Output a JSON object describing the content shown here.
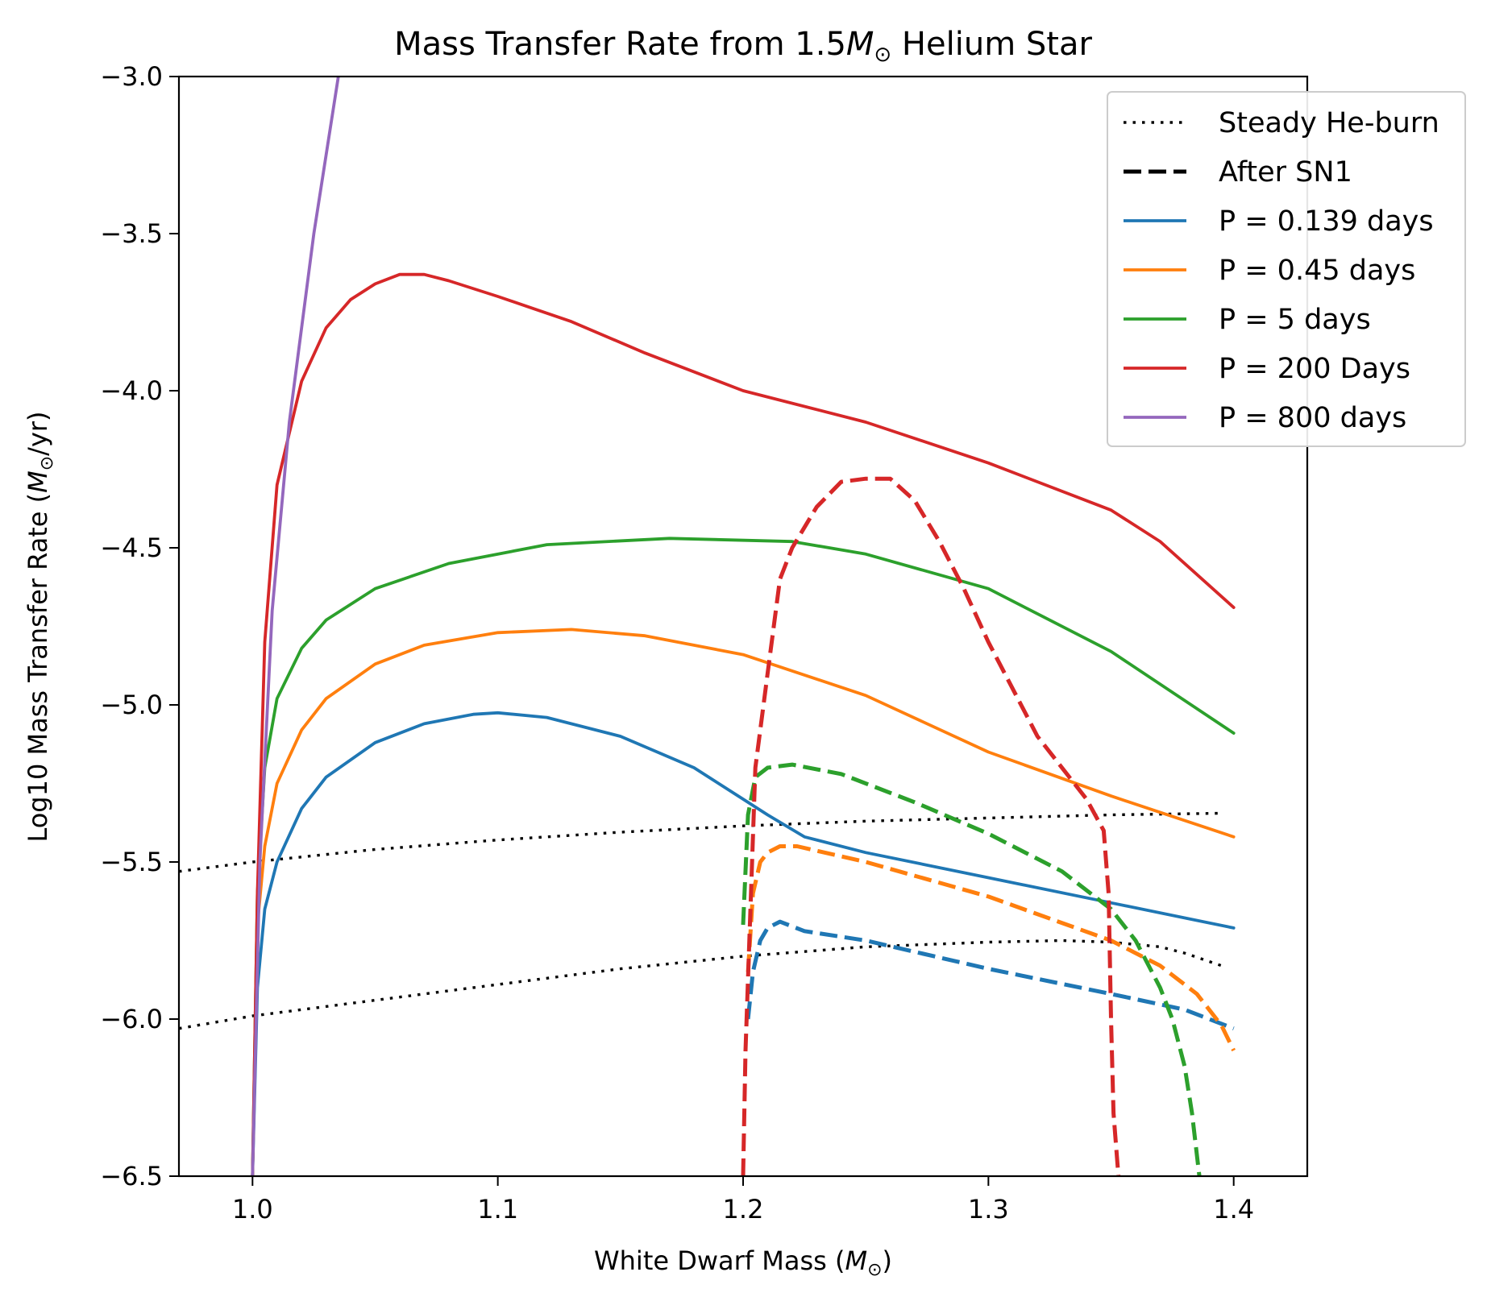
{
  "chart_data": {
    "type": "line",
    "title": "Mass Transfer Rate from 1.5M☉ Helium Star",
    "title_parts": {
      "prefix": "Mass Transfer Rate from 1.5",
      "symbol": "M",
      "sub": "⊙",
      "suffix": " Helium Star"
    },
    "xlabel": "White Dwarf Mass (M☉)",
    "xlabel_parts": {
      "prefix": "White Dwarf Mass (",
      "symbol": "M",
      "sub": "⊙",
      "suffix": ")"
    },
    "ylabel": "Log10 Mass Transfer Rate (M☉/yr)",
    "ylabel_parts": {
      "prefix": "Log10 Mass Transfer Rate (",
      "symbol": "M",
      "sub": "⊙",
      "suffix": "/yr)"
    },
    "xlim": [
      0.97,
      1.43
    ],
    "ylim": [
      -6.5,
      -3.0
    ],
    "xticks": [
      1.0,
      1.1,
      1.2,
      1.3,
      1.4
    ],
    "xtick_labels": [
      "1.0",
      "1.1",
      "1.2",
      "1.3",
      "1.4"
    ],
    "yticks": [
      -3.0,
      -3.5,
      -4.0,
      -4.5,
      -5.0,
      -5.5,
      -6.0,
      -6.5
    ],
    "ytick_labels": [
      "−3.0",
      "−3.5",
      "−4.0",
      "−4.5",
      "−5.0",
      "−5.5",
      "−6.0",
      "−6.5"
    ],
    "grid": false,
    "legend_position": "top-right",
    "legend": [
      {
        "label": "Steady He-burn",
        "color": "#000000",
        "style": "dotted"
      },
      {
        "label": "After SN1",
        "color": "#000000",
        "style": "dashed"
      },
      {
        "label": "P = 0.139 days",
        "color": "#1f77b4",
        "style": "solid"
      },
      {
        "label": "P = 0.45 days",
        "color": "#ff7f0e",
        "style": "solid"
      },
      {
        "label": "P = 5 days",
        "color": "#2ca02c",
        "style": "solid"
      },
      {
        "label": "P = 200 Days",
        "color": "#d62728",
        "style": "solid"
      },
      {
        "label": "P = 800 days",
        "color": "#9467bd",
        "style": "solid"
      }
    ],
    "series": [
      {
        "color": "#000000",
        "style": "dotted",
        "x": [
          0.97,
          1.0,
          1.05,
          1.1,
          1.15,
          1.2,
          1.25,
          1.3,
          1.35,
          1.395
        ],
        "y": [
          -5.53,
          -5.5,
          -5.46,
          -5.43,
          -5.405,
          -5.385,
          -5.37,
          -5.36,
          -5.35,
          -5.345
        ]
      },
      {
        "color": "#000000",
        "style": "dotted",
        "x": [
          0.97,
          1.0,
          1.05,
          1.1,
          1.15,
          1.2,
          1.25,
          1.3,
          1.33,
          1.35,
          1.37,
          1.38,
          1.395
        ],
        "y": [
          -6.03,
          -5.99,
          -5.94,
          -5.89,
          -5.84,
          -5.8,
          -5.77,
          -5.755,
          -5.75,
          -5.755,
          -5.77,
          -5.79,
          -5.83
        ]
      },
      {
        "color": "#1f77b4",
        "style": "solid",
        "x": [
          1.0,
          1.002,
          1.005,
          1.01,
          1.02,
          1.03,
          1.05,
          1.07,
          1.09,
          1.1,
          1.12,
          1.15,
          1.18,
          1.2,
          1.21,
          1.225,
          1.25,
          1.3,
          1.35,
          1.4
        ],
        "y": [
          -6.5,
          -5.9,
          -5.65,
          -5.5,
          -5.33,
          -5.23,
          -5.12,
          -5.06,
          -5.03,
          -5.025,
          -5.04,
          -5.1,
          -5.2,
          -5.3,
          -5.35,
          -5.42,
          -5.47,
          -5.55,
          -5.63,
          -5.71
        ]
      },
      {
        "color": "#ff7f0e",
        "style": "solid",
        "x": [
          1.0,
          1.002,
          1.005,
          1.01,
          1.02,
          1.03,
          1.05,
          1.07,
          1.1,
          1.13,
          1.16,
          1.2,
          1.25,
          1.3,
          1.35,
          1.4
        ],
        "y": [
          -6.5,
          -5.7,
          -5.45,
          -5.25,
          -5.08,
          -4.98,
          -4.87,
          -4.81,
          -4.77,
          -4.76,
          -4.78,
          -4.84,
          -4.97,
          -5.15,
          -5.29,
          -5.42
        ]
      },
      {
        "color": "#2ca02c",
        "style": "solid",
        "x": [
          1.0,
          1.002,
          1.005,
          1.01,
          1.02,
          1.03,
          1.05,
          1.08,
          1.12,
          1.17,
          1.22,
          1.25,
          1.3,
          1.35,
          1.4
        ],
        "y": [
          -6.5,
          -5.6,
          -5.2,
          -4.98,
          -4.82,
          -4.73,
          -4.63,
          -4.55,
          -4.49,
          -4.47,
          -4.48,
          -4.52,
          -4.63,
          -4.83,
          -5.09
        ]
      },
      {
        "color": "#d62728",
        "style": "solid",
        "x": [
          1.0,
          1.002,
          1.005,
          1.01,
          1.02,
          1.03,
          1.04,
          1.05,
          1.06,
          1.07,
          1.08,
          1.1,
          1.13,
          1.16,
          1.2,
          1.25,
          1.3,
          1.35,
          1.37,
          1.4
        ],
        "y": [
          -6.5,
          -5.6,
          -4.8,
          -4.3,
          -3.97,
          -3.8,
          -3.71,
          -3.66,
          -3.63,
          -3.63,
          -3.65,
          -3.7,
          -3.78,
          -3.88,
          -4.0,
          -4.1,
          -4.23,
          -4.38,
          -4.48,
          -4.69
        ]
      },
      {
        "color": "#9467bd",
        "style": "solid",
        "x": [
          1.0,
          1.003,
          1.008,
          1.015,
          1.025,
          1.035
        ],
        "y": [
          -6.5,
          -5.5,
          -4.7,
          -4.1,
          -3.5,
          -3.0
        ]
      },
      {
        "color": "#1f77b4",
        "style": "dashed",
        "x": [
          1.202,
          1.204,
          1.207,
          1.21,
          1.215,
          1.225,
          1.25,
          1.3,
          1.35,
          1.38,
          1.4
        ],
        "y": [
          -6.0,
          -5.85,
          -5.75,
          -5.71,
          -5.69,
          -5.72,
          -5.75,
          -5.84,
          -5.92,
          -5.97,
          -6.03
        ]
      },
      {
        "color": "#ff7f0e",
        "style": "dashed",
        "x": [
          1.202,
          1.204,
          1.207,
          1.21,
          1.215,
          1.222,
          1.25,
          1.3,
          1.35,
          1.37,
          1.385,
          1.395,
          1.4
        ],
        "y": [
          -5.85,
          -5.6,
          -5.5,
          -5.47,
          -5.45,
          -5.45,
          -5.5,
          -5.61,
          -5.75,
          -5.83,
          -5.92,
          -6.02,
          -6.1
        ]
      },
      {
        "color": "#2ca02c",
        "style": "dashed",
        "x": [
          1.2,
          1.202,
          1.205,
          1.21,
          1.22,
          1.24,
          1.27,
          1.3,
          1.33,
          1.35,
          1.36,
          1.37,
          1.375,
          1.38,
          1.383,
          1.386
        ],
        "y": [
          -5.7,
          -5.35,
          -5.23,
          -5.2,
          -5.19,
          -5.22,
          -5.31,
          -5.41,
          -5.53,
          -5.65,
          -5.75,
          -5.9,
          -6.0,
          -6.15,
          -6.3,
          -6.5
        ]
      },
      {
        "color": "#d62728",
        "style": "dashed",
        "x": [
          1.2,
          1.201,
          1.205,
          1.21,
          1.215,
          1.22,
          1.23,
          1.24,
          1.25,
          1.26,
          1.27,
          1.28,
          1.29,
          1.3,
          1.32,
          1.34,
          1.347,
          1.349,
          1.35,
          1.351,
          1.353
        ],
        "y": [
          -6.5,
          -6.1,
          -5.2,
          -4.9,
          -4.6,
          -4.5,
          -4.37,
          -4.29,
          -4.28,
          -4.28,
          -4.35,
          -4.48,
          -4.63,
          -4.8,
          -5.1,
          -5.3,
          -5.4,
          -5.6,
          -6.0,
          -6.3,
          -6.5
        ]
      }
    ]
  }
}
